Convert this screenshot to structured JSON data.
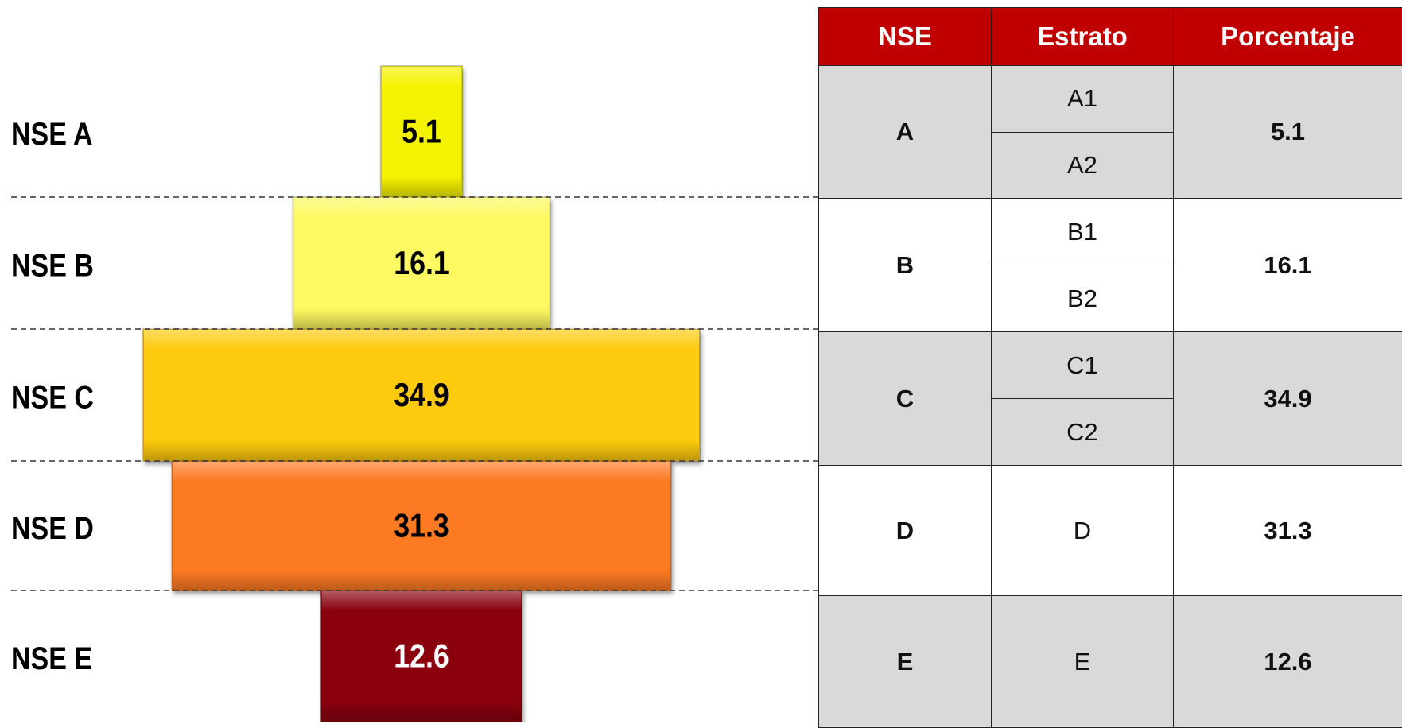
{
  "chart_data": {
    "type": "bar",
    "categories": [
      "NSE A",
      "NSE B",
      "NSE C",
      "NSE D",
      "NSE E"
    ],
    "values": [
      5.1,
      16.1,
      34.9,
      31.3,
      12.6
    ],
    "colors": [
      "#f5f200",
      "#fdf962",
      "#fdca0c",
      "#fc7a22",
      "#8a0507"
    ]
  },
  "table": {
    "header": [
      "NSE",
      "Estrato",
      "Porcentaje"
    ],
    "rows": [
      {
        "nse": "A",
        "estratos": [
          "A1",
          "A2"
        ],
        "porcentaje": "5.1"
      },
      {
        "nse": "B",
        "estratos": [
          "B1",
          "B2"
        ],
        "porcentaje": "16.1"
      },
      {
        "nse": "C",
        "estratos": [
          "C1",
          "C2"
        ],
        "porcentaje": "34.9"
      },
      {
        "nse": "D",
        "estratos": [
          "D"
        ],
        "porcentaje": "31.3"
      },
      {
        "nse": "E",
        "estratos": [
          "E"
        ],
        "porcentaje": "12.6"
      }
    ]
  }
}
